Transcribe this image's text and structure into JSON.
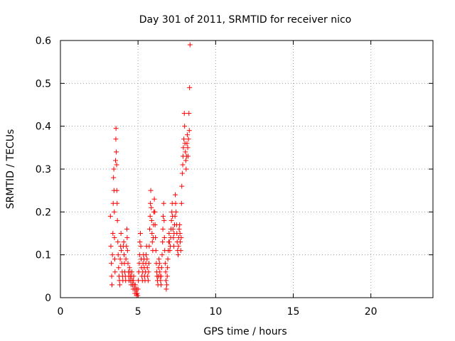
{
  "chart_data": {
    "type": "scatter",
    "title": "Day 301 of 2011, SRMTID for receiver nico",
    "xlabel": "GPS time / hours",
    "ylabel": "SRMTID / TECUs",
    "xlim": [
      0,
      24
    ],
    "ylim": [
      0,
      0.6
    ],
    "xticks": [
      0,
      5,
      10,
      15,
      20
    ],
    "xtick_labels": [
      "0",
      "5",
      "10",
      "15",
      "20"
    ],
    "yticks": [
      0,
      0.1,
      0.2,
      0.3,
      0.4,
      0.5,
      0.6
    ],
    "ytick_labels": [
      "0",
      "0.1",
      "0.2",
      "0.3",
      "0.4",
      "0.5",
      "0.6"
    ],
    "grid": true,
    "marker": "+",
    "marker_color": "#ff0000",
    "series": [
      {
        "name": "SRMTID",
        "points": [
          [
            3.22,
            0.19
          ],
          [
            3.25,
            0.12
          ],
          [
            3.28,
            0.08
          ],
          [
            3.3,
            0.05
          ],
          [
            3.32,
            0.03
          ],
          [
            3.35,
            0.1
          ],
          [
            3.38,
            0.15
          ],
          [
            3.4,
            0.22
          ],
          [
            3.42,
            0.28
          ],
          [
            3.44,
            0.3
          ],
          [
            3.45,
            0.25
          ],
          [
            3.47,
            0.2
          ],
          [
            3.48,
            0.14
          ],
          [
            3.5,
            0.09
          ],
          [
            3.52,
            0.06
          ],
          [
            3.55,
            0.32
          ],
          [
            3.57,
            0.37
          ],
          [
            3.58,
            0.395
          ],
          [
            3.6,
            0.34
          ],
          [
            3.62,
            0.31
          ],
          [
            3.63,
            0.25
          ],
          [
            3.65,
            0.22
          ],
          [
            3.67,
            0.18
          ],
          [
            3.7,
            0.13
          ],
          [
            3.72,
            0.1
          ],
          [
            3.75,
            0.07
          ],
          [
            3.78,
            0.05
          ],
          [
            3.8,
            0.04
          ],
          [
            3.82,
            0.03
          ],
          [
            3.85,
            0.09
          ],
          [
            3.88,
            0.12
          ],
          [
            3.9,
            0.15
          ],
          [
            3.92,
            0.11
          ],
          [
            3.95,
            0.08
          ],
          [
            3.98,
            0.06
          ],
          [
            4.0,
            0.05
          ],
          [
            4.02,
            0.04
          ],
          [
            4.05,
            0.12
          ],
          [
            4.08,
            0.13
          ],
          [
            4.1,
            0.1
          ],
          [
            4.12,
            0.08
          ],
          [
            4.15,
            0.06
          ],
          [
            4.18,
            0.05
          ],
          [
            4.2,
            0.04
          ],
          [
            4.22,
            0.09
          ],
          [
            4.25,
            0.12
          ],
          [
            4.28,
            0.16
          ],
          [
            4.3,
            0.14
          ],
          [
            4.32,
            0.11
          ],
          [
            4.35,
            0.08
          ],
          [
            4.38,
            0.06
          ],
          [
            4.4,
            0.05
          ],
          [
            4.42,
            0.04
          ],
          [
            4.45,
            0.07
          ],
          [
            4.48,
            0.06
          ],
          [
            4.5,
            0.05
          ],
          [
            4.52,
            0.04
          ],
          [
            4.55,
            0.03
          ],
          [
            4.58,
            0.05
          ],
          [
            4.6,
            0.06
          ],
          [
            4.62,
            0.04
          ],
          [
            4.65,
            0.03
          ],
          [
            4.68,
            0.02
          ],
          [
            4.7,
            0.04
          ],
          [
            4.72,
            0.05
          ],
          [
            4.75,
            0.03
          ],
          [
            4.78,
            0.02
          ],
          [
            4.8,
            0.01
          ],
          [
            4.82,
            0.03
          ],
          [
            4.85,
            0.02
          ],
          [
            4.88,
            0.01
          ],
          [
            4.9,
            0.005
          ],
          [
            4.92,
            0.02
          ],
          [
            4.95,
            0.01
          ],
          [
            4.98,
            0.005
          ],
          [
            5.0,
            0.02
          ],
          [
            5.02,
            0.04
          ],
          [
            5.05,
            0.06
          ],
          [
            5.08,
            0.08
          ],
          [
            5.1,
            0.1
          ],
          [
            5.12,
            0.13
          ],
          [
            5.15,
            0.15
          ],
          [
            5.18,
            0.12
          ],
          [
            5.2,
            0.09
          ],
          [
            5.22,
            0.07
          ],
          [
            5.25,
            0.05
          ],
          [
            5.28,
            0.04
          ],
          [
            5.3,
            0.06
          ],
          [
            5.32,
            0.08
          ],
          [
            5.35,
            0.1
          ],
          [
            5.38,
            0.09
          ],
          [
            5.4,
            0.07
          ],
          [
            5.42,
            0.05
          ],
          [
            5.45,
            0.04
          ],
          [
            5.48,
            0.06
          ],
          [
            5.5,
            0.08
          ],
          [
            5.52,
            0.1
          ],
          [
            5.55,
            0.12
          ],
          [
            5.58,
            0.09
          ],
          [
            5.6,
            0.07
          ],
          [
            5.62,
            0.05
          ],
          [
            5.65,
            0.04
          ],
          [
            5.68,
            0.06
          ],
          [
            5.7,
            0.08
          ],
          [
            5.72,
            0.12
          ],
          [
            5.75,
            0.16
          ],
          [
            5.78,
            0.19
          ],
          [
            5.8,
            0.22
          ],
          [
            5.82,
            0.25
          ],
          [
            5.85,
            0.21
          ],
          [
            5.88,
            0.18
          ],
          [
            5.9,
            0.15
          ],
          [
            5.92,
            0.13
          ],
          [
            5.95,
            0.11
          ],
          [
            5.98,
            0.14
          ],
          [
            6.0,
            0.17
          ],
          [
            6.02,
            0.2
          ],
          [
            6.05,
            0.23
          ],
          [
            6.08,
            0.2
          ],
          [
            6.1,
            0.17
          ],
          [
            6.12,
            0.14
          ],
          [
            6.15,
            0.11
          ],
          [
            6.18,
            0.08
          ],
          [
            6.2,
            0.06
          ],
          [
            6.22,
            0.05
          ],
          [
            6.25,
            0.04
          ],
          [
            6.28,
            0.03
          ],
          [
            6.3,
            0.05
          ],
          [
            6.32,
            0.07
          ],
          [
            6.35,
            0.09
          ],
          [
            6.38,
            0.08
          ],
          [
            6.4,
            0.06
          ],
          [
            6.42,
            0.05
          ],
          [
            6.45,
            0.04
          ],
          [
            6.48,
            0.03
          ],
          [
            6.5,
            0.05
          ],
          [
            6.52,
            0.07
          ],
          [
            6.55,
            0.1
          ],
          [
            6.58,
            0.13
          ],
          [
            6.6,
            0.16
          ],
          [
            6.62,
            0.19
          ],
          [
            6.65,
            0.22
          ],
          [
            6.68,
            0.18
          ],
          [
            6.7,
            0.14
          ],
          [
            6.72,
            0.11
          ],
          [
            6.75,
            0.08
          ],
          [
            6.78,
            0.06
          ],
          [
            6.8,
            0.04
          ],
          [
            6.82,
            0.02
          ],
          [
            6.85,
            0.03
          ],
          [
            6.88,
            0.05
          ],
          [
            6.9,
            0.07
          ],
          [
            6.92,
            0.09
          ],
          [
            6.95,
            0.11
          ],
          [
            6.98,
            0.13
          ],
          [
            7.0,
            0.15
          ],
          [
            7.02,
            0.13
          ],
          [
            7.05,
            0.11
          ],
          [
            7.08,
            0.12
          ],
          [
            7.1,
            0.14
          ],
          [
            7.12,
            0.16
          ],
          [
            7.15,
            0.18
          ],
          [
            7.18,
            0.2
          ],
          [
            7.2,
            0.22
          ],
          [
            7.22,
            0.19
          ],
          [
            7.25,
            0.16
          ],
          [
            7.28,
            0.14
          ],
          [
            7.3,
            0.12
          ],
          [
            7.32,
            0.15
          ],
          [
            7.35,
            0.17
          ],
          [
            7.38,
            0.19
          ],
          [
            7.4,
            0.24
          ],
          [
            7.42,
            0.22
          ],
          [
            7.45,
            0.2
          ],
          [
            7.48,
            0.17
          ],
          [
            7.5,
            0.15
          ],
          [
            7.52,
            0.13
          ],
          [
            7.55,
            0.11
          ],
          [
            7.58,
            0.1
          ],
          [
            7.6,
            0.12
          ],
          [
            7.62,
            0.14
          ],
          [
            7.65,
            0.16
          ],
          [
            7.68,
            0.17
          ],
          [
            7.7,
            0.15
          ],
          [
            7.72,
            0.13
          ],
          [
            7.75,
            0.11
          ],
          [
            7.78,
            0.14
          ],
          [
            7.8,
            0.22
          ],
          [
            7.82,
            0.26
          ],
          [
            7.85,
            0.29
          ],
          [
            7.88,
            0.31
          ],
          [
            7.9,
            0.33
          ],
          [
            7.92,
            0.35
          ],
          [
            7.95,
            0.37
          ],
          [
            7.98,
            0.43
          ],
          [
            8.0,
            0.4
          ],
          [
            8.02,
            0.36
          ],
          [
            8.05,
            0.34
          ],
          [
            8.08,
            0.32
          ],
          [
            8.1,
            0.3
          ],
          [
            8.12,
            0.33
          ],
          [
            8.15,
            0.36
          ],
          [
            8.18,
            0.38
          ],
          [
            8.2,
            0.35
          ],
          [
            8.22,
            0.33
          ],
          [
            8.25,
            0.37
          ],
          [
            8.28,
            0.43
          ],
          [
            8.3,
            0.39
          ],
          [
            8.32,
            0.49
          ],
          [
            8.35,
            0.59
          ]
        ]
      }
    ]
  }
}
